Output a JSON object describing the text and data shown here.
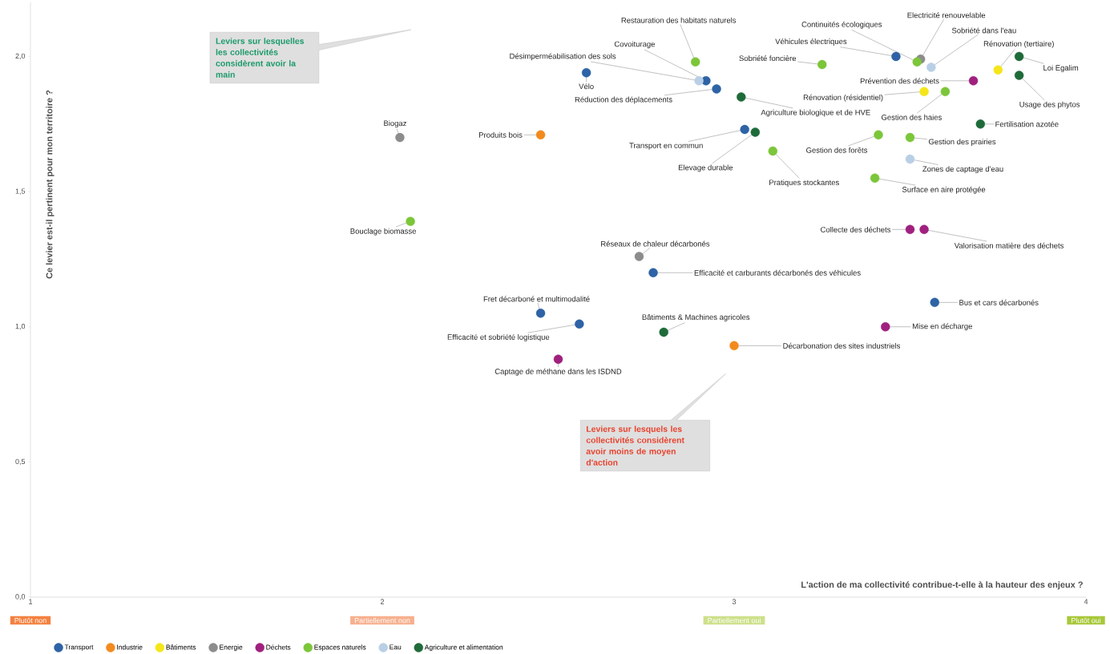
{
  "chart_data": {
    "type": "scatter",
    "xlabel": "L'action de ma collectivité contribue-t-elle à la hauteur des enjeux ?",
    "ylabel": "Ce levier est-il pertinent pour mon territoire ?",
    "xlim": [
      1,
      4
    ],
    "ylim": [
      0,
      2.2
    ],
    "xticks": [
      1,
      2,
      3,
      4
    ],
    "yticks": [
      {
        "value": 0,
        "label": "0,0"
      },
      {
        "value": 0.5,
        "label": "0,5"
      },
      {
        "value": 1,
        "label": "1,0"
      },
      {
        "value": 1.5,
        "label": "1,5"
      },
      {
        "value": 2,
        "label": "2,0"
      }
    ],
    "grid": false,
    "legend": "bottom",
    "series": [
      {
        "name": "Transport",
        "color": "#2e63a6",
        "x": [
          2.58,
          2.92,
          2.95,
          3.03,
          3.46,
          2.77,
          2.45,
          2.56,
          3.57
        ],
        "values": [
          1.94,
          1.91,
          1.88,
          1.73,
          2.0,
          1.2,
          1.05,
          1.01,
          1.09
        ]
      },
      {
        "name": "Industrie",
        "color": "#f28a1e",
        "x": [
          2.45,
          3.0
        ],
        "values": [
          1.71,
          0.93
        ]
      },
      {
        "name": "Bâtiments",
        "color": "#f5e61a",
        "x": [
          3.75,
          3.54
        ],
        "values": [
          1.95,
          1.87
        ]
      },
      {
        "name": "Energie",
        "color": "#8c8c8c",
        "x": [
          2.05,
          3.53,
          2.73
        ],
        "values": [
          1.7,
          1.99,
          1.26
        ]
      },
      {
        "name": "Déchets",
        "color": "#a0207f",
        "x": [
          3.68,
          3.5,
          3.54,
          3.43,
          2.5
        ],
        "values": [
          1.91,
          1.36,
          1.36,
          1.0,
          0.88
        ]
      },
      {
        "name": "Espaces naturels",
        "color": "#7cc63a",
        "x": [
          2.89,
          3.25,
          3.52,
          3.6,
          3.41,
          3.5,
          3.11,
          3.4,
          2.08
        ],
        "values": [
          1.98,
          1.97,
          1.98,
          1.87,
          1.71,
          1.7,
          1.65,
          1.55,
          1.39
        ]
      },
      {
        "name": "Eau",
        "color": "#b9cfe6",
        "x": [
          2.9,
          3.56,
          3.5
        ],
        "values": [
          1.91,
          1.96,
          1.62
        ]
      },
      {
        "name": "Agriculture et alimentation",
        "color": "#1e6b3a",
        "x": [
          3.02,
          3.06,
          3.81,
          3.81,
          3.7,
          2.8
        ],
        "values": [
          1.85,
          1.72,
          2.0,
          1.93,
          1.75,
          0.98
        ]
      }
    ],
    "annotations": [
      {
        "text": "Vélo",
        "x": 2.58,
        "y": 1.94
      },
      {
        "text": "Covoiturage",
        "x": 2.92,
        "y": 1.91
      },
      {
        "text": "Réduction des déplacements",
        "x": 2.95,
        "y": 1.88
      },
      {
        "text": "Transport en commun",
        "x": 3.03,
        "y": 1.73
      },
      {
        "text": "Véhicules électriques",
        "x": 3.46,
        "y": 2.0
      },
      {
        "text": "Efficacité et carburants décarbonés des véhicules",
        "x": 2.77,
        "y": 1.2
      },
      {
        "text": "Fret décarboné et multimodalité",
        "x": 2.45,
        "y": 1.05
      },
      {
        "text": "Efficacité et sobriété logistique",
        "x": 2.56,
        "y": 1.01
      },
      {
        "text": "Bus et cars décarbonés",
        "x": 3.57,
        "y": 1.09
      },
      {
        "text": "Produits bois",
        "x": 2.45,
        "y": 1.71
      },
      {
        "text": "Décarbonation des sites industriels",
        "x": 3.0,
        "y": 0.93
      },
      {
        "text": "Rénovation (tertiaire)",
        "x": 3.75,
        "y": 1.95
      },
      {
        "text": "Rénovation (résidentiel)",
        "x": 3.54,
        "y": 1.87
      },
      {
        "text": "Biogaz",
        "x": 2.05,
        "y": 1.7
      },
      {
        "text": "Electricité renouvelable",
        "x": 3.53,
        "y": 1.99
      },
      {
        "text": "Réseaux de chaleur décarbonés",
        "x": 2.73,
        "y": 1.26
      },
      {
        "text": "Prévention des déchets",
        "x": 3.68,
        "y": 1.91
      },
      {
        "text": "Collecte des déchets",
        "x": 3.5,
        "y": 1.36
      },
      {
        "text": "Valorisation matière des déchets",
        "x": 3.54,
        "y": 1.36
      },
      {
        "text": "Mise en décharge",
        "x": 3.43,
        "y": 1.0
      },
      {
        "text": "Captage de méthane dans les ISDND",
        "x": 2.5,
        "y": 0.88
      },
      {
        "text": "Restauration des habitats naturels",
        "x": 2.89,
        "y": 1.98
      },
      {
        "text": "Sobriété foncière",
        "x": 3.25,
        "y": 1.97
      },
      {
        "text": "Continuités écologiques",
        "x": 3.52,
        "y": 1.98
      },
      {
        "text": "Gestion des haies",
        "x": 3.6,
        "y": 1.87
      },
      {
        "text": "Gestion des forêts",
        "x": 3.41,
        "y": 1.71
      },
      {
        "text": "Gestion des prairies",
        "x": 3.5,
        "y": 1.7
      },
      {
        "text": "Pratiques stockantes",
        "x": 3.11,
        "y": 1.65
      },
      {
        "text": "Surface en aire protégée",
        "x": 3.4,
        "y": 1.55
      },
      {
        "text": "Bouclage biomasse",
        "x": 2.08,
        "y": 1.39
      },
      {
        "text": "Désimperméabilisation des sols",
        "x": 2.9,
        "y": 1.91
      },
      {
        "text": "Sobriété dans l'eau",
        "x": 3.56,
        "y": 1.96
      },
      {
        "text": "Zones de captage d'eau",
        "x": 3.5,
        "y": 1.62
      },
      {
        "text": "Agriculture biologique et de HVE",
        "x": 3.02,
        "y": 1.85
      },
      {
        "text": "Elevage durable",
        "x": 3.06,
        "y": 1.72
      },
      {
        "text": "Loi Egalim",
        "x": 3.81,
        "y": 2.0
      },
      {
        "text": "Usage des phytos",
        "x": 3.81,
        "y": 1.93
      },
      {
        "text": "Fertilisation azotée",
        "x": 3.7,
        "y": 1.75
      },
      {
        "text": "Bâtiments & Machines agricoles",
        "x": 2.8,
        "y": 0.98
      },
      "Plutôt non",
      "Partiellement non",
      "Partiellement oui",
      "Plutôt oui",
      "Leviers sur lesquelles les collectivités considèrent avoir la main",
      "Leviers sur lesquels les collectivités considèrent avoir moins de moyen d'action"
    ]
  }
}
